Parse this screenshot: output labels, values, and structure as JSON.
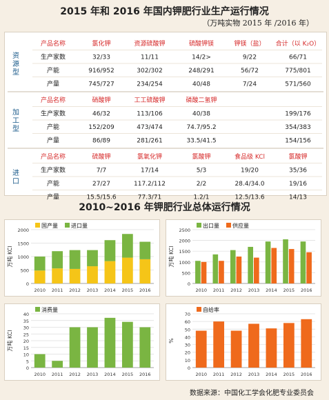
{
  "title": "2015 年和 2016 年国内钾肥行业生产运行情况",
  "unit_note": "（万吨实物  2015 年 /2016 年）",
  "chart_section_title": "2010~2016 年钾肥行业总体运行情况",
  "source": "数据来源：中国化工学会化肥专业委员会",
  "sections": [
    {
      "label": "资源型",
      "columns": [
        "产品名称",
        "氯化钾",
        "资源硫酸钾",
        "硫酸钾镁",
        "钾镁（盐）",
        "合计（以 K₂O）"
      ],
      "rows": [
        [
          "生产家数",
          "32/33",
          "11/11",
          "14/2>",
          "9/22",
          "66/71"
        ],
        [
          "产能",
          "916/952",
          "302/302",
          "248/291",
          "56/72",
          "775/801"
        ],
        [
          "产量",
          "745/727",
          "234/254",
          "40/48",
          "7/24",
          "571/560"
        ]
      ]
    },
    {
      "label": "加工型",
      "columns": [
        "产品名称",
        "硝酸钾",
        "工工硫酸钾",
        "磷酸二氢钾",
        "",
        ""
      ],
      "rows": [
        [
          "生产家数",
          "46/32",
          "113/106",
          "40/38",
          "",
          "199/176"
        ],
        [
          "产能",
          "152/209",
          "473/474",
          "74.7/95.2",
          "",
          "354/383"
        ],
        [
          "产量",
          "86/89",
          "281/261",
          "33.5/41.5",
          "",
          "154/156"
        ]
      ]
    },
    {
      "label": "进口",
      "columns": [
        "产品名称",
        "硫酸钾",
        "氯氧化钾",
        "氯酸钾",
        "食品级 KCl",
        "氯酸钾"
      ],
      "rows": [
        [
          "生产家数",
          "7/7",
          "17/14",
          "5/3",
          "19/20",
          "35/36"
        ],
        [
          "产能",
          "27/27",
          "117.2/112",
          "2/2",
          "28.4/34.0",
          "19/16"
        ],
        [
          "产量",
          "15.5/15.6",
          "77.3/71",
          "1.2/1",
          "12.5/13.6",
          "14/13"
        ]
      ]
    }
  ],
  "chart_data": [
    {
      "type": "bar",
      "stacked": true,
      "ylabel": "万吨 KCl",
      "categories": [
        "2010",
        "2011",
        "2012",
        "2013",
        "2014",
        "2015",
        "2016"
      ],
      "series": [
        {
          "name": "国产量",
          "values": [
            480,
            560,
            540,
            640,
            830,
            960,
            900
          ]
        },
        {
          "name": "进口量",
          "values": [
            520,
            640,
            700,
            600,
            780,
            880,
            650
          ]
        }
      ],
      "colors": [
        "#f5c518",
        "#7ab542"
      ],
      "ylim": [
        0,
        2000
      ],
      "yticks": [
        0,
        500,
        1000,
        1500,
        2000
      ],
      "legend": "top-left"
    },
    {
      "type": "bar",
      "ylabel": "万吨 KCl",
      "categories": [
        "2010",
        "2011",
        "2012",
        "2013",
        "2014",
        "2015",
        "2016"
      ],
      "series": [
        {
          "name": "出口量",
          "values": [
            1050,
            1350,
            1550,
            1700,
            1950,
            2050,
            1950
          ]
        },
        {
          "name": "供应量",
          "values": [
            1000,
            1050,
            1250,
            1200,
            1650,
            1600,
            1450
          ]
        }
      ],
      "colors": [
        "#7ab542",
        "#ef6a1c"
      ],
      "ylim": [
        0,
        2500
      ],
      "yticks": [
        0,
        500,
        1000,
        1500,
        2000,
        2500
      ],
      "legend": "top-left"
    },
    {
      "type": "bar",
      "ylabel": "万吨 KCl",
      "categories": [
        "2010",
        "2011",
        "2012",
        "2013",
        "2014",
        "2015",
        "2016"
      ],
      "series": [
        {
          "name": "消费量",
          "values": [
            10,
            5,
            30,
            30,
            37,
            34,
            30
          ]
        }
      ],
      "colors": [
        "#7ab542"
      ],
      "ylim": [
        0,
        40
      ],
      "yticks": [
        0,
        5,
        10,
        15,
        20,
        25,
        30,
        35,
        40
      ],
      "legend": "top-left"
    },
    {
      "type": "bar",
      "ylabel": "%",
      "categories": [
        "2010",
        "2011",
        "2012",
        "2013",
        "2014",
        "2015",
        "2016"
      ],
      "series": [
        {
          "name": "自给率",
          "values": [
            48,
            60,
            48,
            57,
            51,
            58,
            63
          ]
        }
      ],
      "colors": [
        "#ef6a1c"
      ],
      "ylim": [
        0,
        70
      ],
      "yticks": [
        0,
        10,
        20,
        30,
        40,
        50,
        60,
        70
      ],
      "legend": "top-left"
    }
  ]
}
